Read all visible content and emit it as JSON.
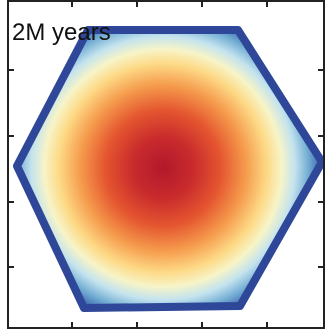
{
  "panel": {
    "label": "2M years"
  }
}
